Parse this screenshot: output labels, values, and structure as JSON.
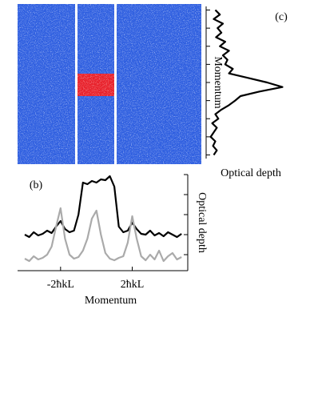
{
  "chart_data": [
    {
      "type": "line",
      "orientation": "vertical",
      "annotation": "(b)",
      "xlabel": "Momentum",
      "ylabel": "Optical depth",
      "x": [
        -4,
        -3.75,
        -3.5,
        -3.25,
        -3,
        -2.75,
        -2.5,
        -2.25,
        -2,
        -1.75,
        -1.5,
        -1.25,
        -1,
        -0.75,
        -0.5,
        -0.25,
        0,
        0.25,
        0.5,
        0.75,
        1,
        1.25,
        1.5,
        1.75,
        2,
        2.25,
        2.5,
        2.75,
        3,
        3.25,
        3.5,
        3.75,
        4,
        4.25,
        4.5,
        4.75
      ],
      "series": [
        {
          "color": "#000000",
          "values": [
            0.45,
            0.42,
            0.48,
            0.44,
            0.46,
            0.5,
            0.47,
            0.55,
            0.62,
            0.52,
            0.48,
            0.5,
            0.7,
            1.1,
            1.08,
            1.12,
            1.1,
            1.14,
            1.13,
            1.18,
            1.05,
            0.55,
            0.48,
            0.5,
            0.6,
            0.52,
            0.46,
            0.45,
            0.5,
            0.44,
            0.47,
            0.43,
            0.48,
            0.45,
            0.42,
            0.46
          ]
        },
        {
          "color": "#aaaaaa",
          "values": [
            0.15,
            0.12,
            0.18,
            0.14,
            0.16,
            0.2,
            0.3,
            0.55,
            0.78,
            0.4,
            0.2,
            0.15,
            0.17,
            0.25,
            0.4,
            0.65,
            0.75,
            0.45,
            0.22,
            0.15,
            0.13,
            0.16,
            0.18,
            0.35,
            0.68,
            0.4,
            0.18,
            0.13,
            0.2,
            0.14,
            0.25,
            0.12,
            0.18,
            0.22,
            0.14,
            0.17
          ]
        }
      ],
      "xlim": [
        -4.4,
        5.1
      ],
      "ylim": [
        0,
        1.2
      ],
      "xticks": [
        {
          "value": -2,
          "label": "-2ħkL"
        },
        {
          "value": 2,
          "label": "2ħkL"
        }
      ],
      "yticks": [
        0.2,
        0.45,
        0.7,
        0.95,
        1.2
      ]
    },
    {
      "type": "line",
      "orientation": "horizontal",
      "annotation": "(c)",
      "xlabel": "Momentum",
      "ylabel": "Optical depth",
      "x": [
        -4,
        -3.75,
        -3.5,
        -3.25,
        -3,
        -2.75,
        -2.5,
        -2.25,
        -2,
        -1.75,
        -1.5,
        -1.25,
        -1,
        -0.75,
        -0.5,
        -0.25,
        0,
        0.25,
        0.5,
        0.75,
        1,
        1.25,
        1.5,
        1.75,
        2,
        2.25,
        2.5,
        2.75,
        3,
        3.25,
        3.5,
        3.75,
        4
      ],
      "series": [
        {
          "color": "#000000",
          "values": [
            0.12,
            0.18,
            0.1,
            0.22,
            0.15,
            0.2,
            0.13,
            0.25,
            0.18,
            0.3,
            0.22,
            0.28,
            0.25,
            0.35,
            0.3,
            0.55,
            0.8,
            1.0,
            0.7,
            0.45,
            0.38,
            0.3,
            0.2,
            0.12,
            0.16,
            0.08,
            0.14,
            0.1,
            0.06,
            0.12,
            0.09,
            0.14,
            0.1
          ]
        }
      ],
      "xlim": [
        -4.2,
        4.2
      ],
      "ylim": [
        0,
        1.1
      ],
      "yticks": [
        -4,
        -3,
        -2,
        -1,
        0,
        1,
        2,
        3,
        4
      ]
    }
  ]
}
